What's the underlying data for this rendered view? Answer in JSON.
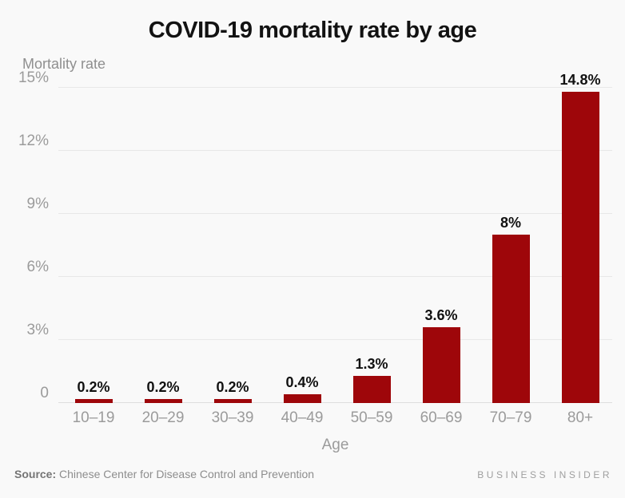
{
  "title": "COVID-19 mortality rate by age",
  "chart_data": {
    "type": "bar",
    "title": "COVID-19 mortality rate by age",
    "ylabel": "Mortality rate",
    "xlabel": "Age",
    "categories": [
      "10–19",
      "20–29",
      "30–39",
      "40–49",
      "50–59",
      "60–69",
      "70–79",
      "80+"
    ],
    "values": [
      0.2,
      0.2,
      0.2,
      0.4,
      1.3,
      3.6,
      8,
      14.8
    ],
    "value_labels": [
      "0.2%",
      "0.2%",
      "0.2%",
      "0.4%",
      "1.3%",
      "3.6%",
      "8%",
      "14.8%"
    ],
    "ylim": [
      0,
      15
    ],
    "y_ticks": [
      {
        "value": 0,
        "label": "0"
      },
      {
        "value": 3,
        "label": "3%"
      },
      {
        "value": 6,
        "label": "6%"
      },
      {
        "value": 9,
        "label": "9%"
      },
      {
        "value": 12,
        "label": "12%"
      },
      {
        "value": 15,
        "label": "15%"
      }
    ],
    "grid": true,
    "legend": null,
    "bar_color": "#9e060a"
  },
  "colors": {
    "background": "#f9f9f9",
    "bar": "#9e060a",
    "gridline": "#e8e8e8",
    "axis_text": "#9b9b9b",
    "title_text": "#121212"
  },
  "footer": {
    "source_label": "Source:",
    "source_text": " Chinese Center for Disease Control and Prevention",
    "brand": "BUSINESS INSIDER"
  }
}
